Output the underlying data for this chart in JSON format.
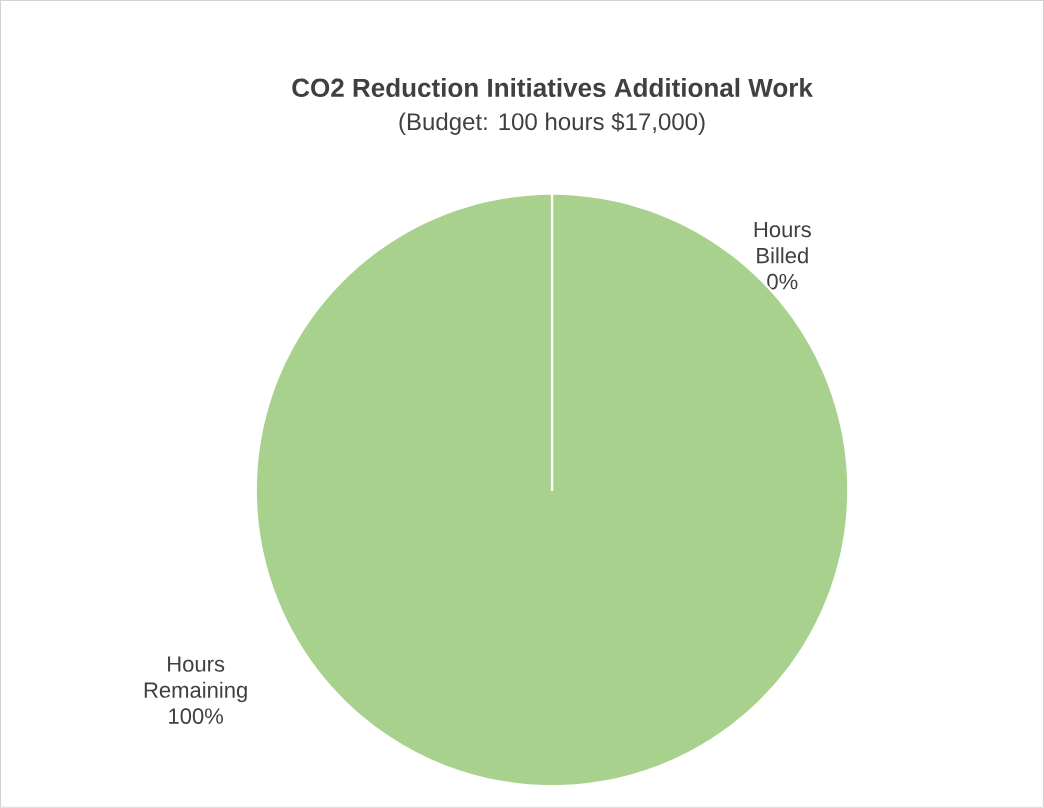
{
  "chart_data": {
    "type": "pie",
    "title": "CO2 Reduction Initiatives Additional Work",
    "subtitle": "(Budget: 100 hours $17,000)",
    "categories": [
      "Hours Billed",
      "Hours Remaining"
    ],
    "values": [
      0,
      100
    ],
    "colors": [
      "#a9d18e",
      "#a9d18e"
    ],
    "value_labels": [
      "0%",
      "100%"
    ]
  }
}
